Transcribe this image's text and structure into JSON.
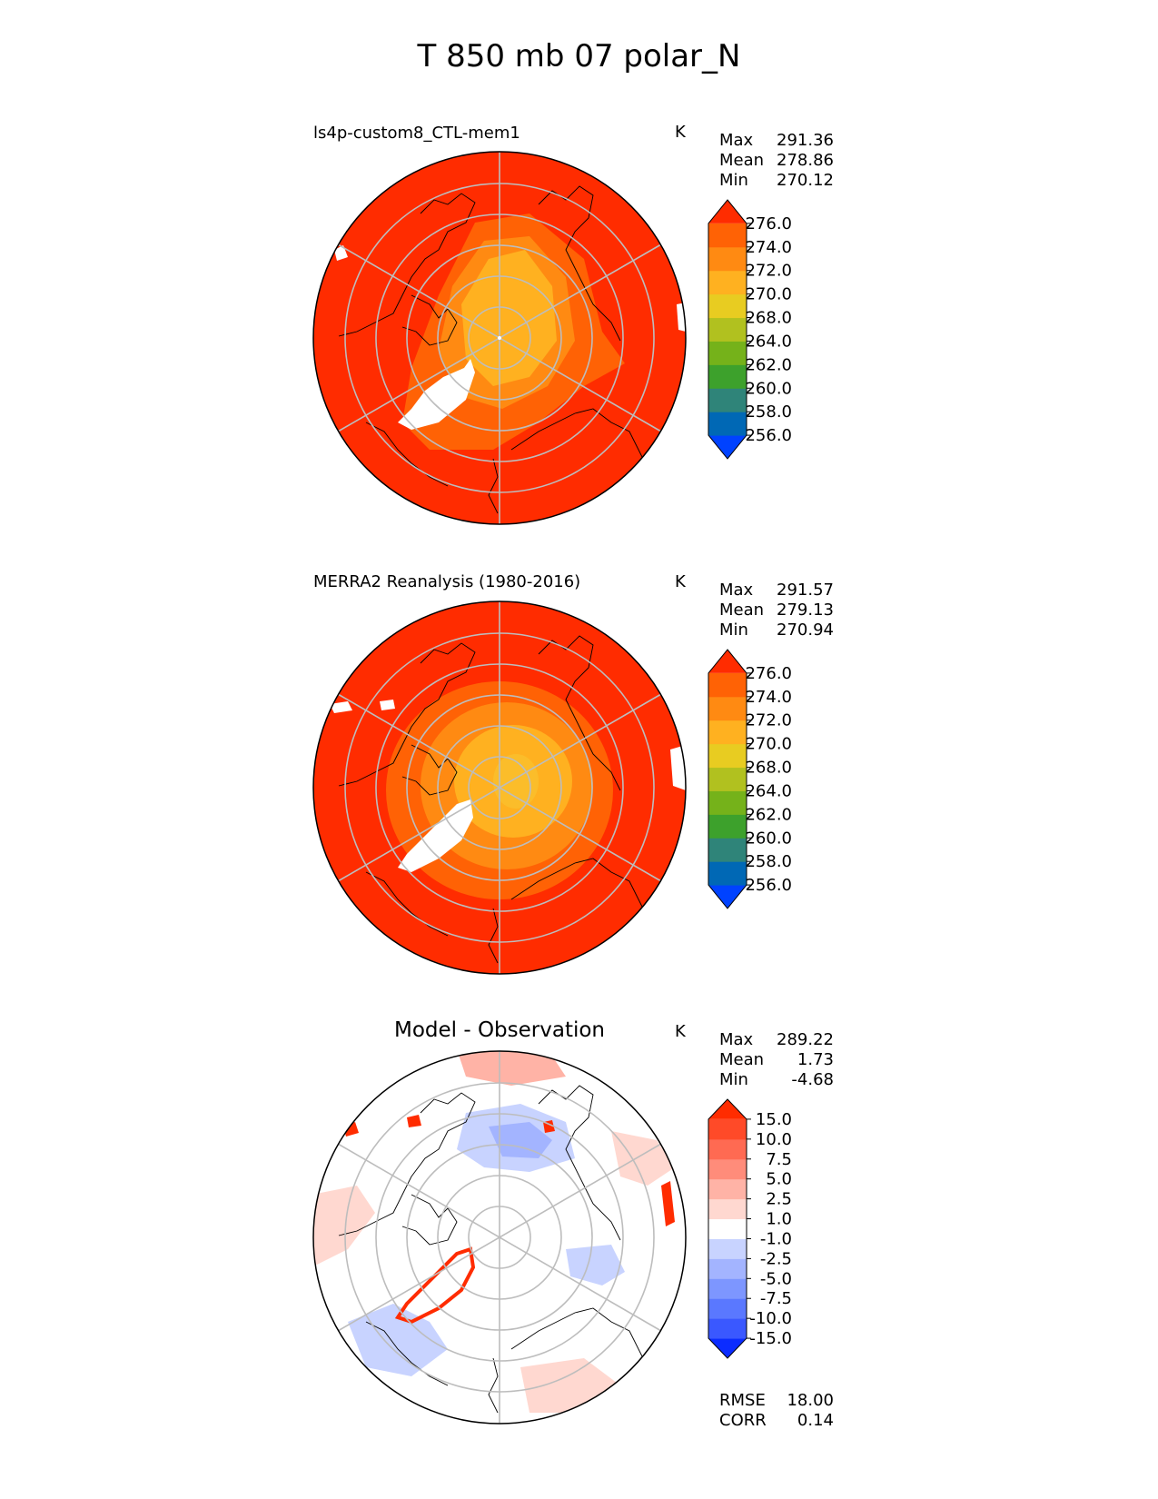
{
  "figure_title": "T 850 mb 07 polar_N",
  "units_label": "K",
  "panels": [
    {
      "title": "ls4p-custom8_CTL-mem1",
      "stats": [
        {
          "label": "Max",
          "value": "291.36"
        },
        {
          "label": "Mean",
          "value": "278.86"
        },
        {
          "label": "Min",
          "value": "270.12"
        }
      ],
      "colorbar": {
        "colors": [
          "#0042ff",
          "#0068b5",
          "#2f8479",
          "#3da12c",
          "#75b21a",
          "#b1c11f",
          "#e8cc21",
          "#ffb120",
          "#ff8a12",
          "#ff6205",
          "#ff2c00"
        ],
        "ticks": [
          "256.0",
          "258.0",
          "260.0",
          "262.0",
          "264.0",
          "268.0",
          "270.0",
          "272.0",
          "274.0",
          "276.0"
        ]
      },
      "center_color": "#ffb120",
      "ring_colors": [
        "#ffb120",
        "#ff8a12",
        "#ff6205",
        "#ff2c00"
      ]
    },
    {
      "title": "MERRA2 Reanalysis (1980-2016)",
      "stats": [
        {
          "label": "Max",
          "value": "291.57"
        },
        {
          "label": "Mean",
          "value": "279.13"
        },
        {
          "label": "Min",
          "value": "270.94"
        }
      ],
      "colorbar": {
        "colors": [
          "#0042ff",
          "#0068b5",
          "#2f8479",
          "#3da12c",
          "#75b21a",
          "#b1c11f",
          "#e8cc21",
          "#ffb120",
          "#ff8a12",
          "#ff6205",
          "#ff2c00"
        ],
        "ticks": [
          "256.0",
          "258.0",
          "260.0",
          "262.0",
          "264.0",
          "268.0",
          "270.0",
          "272.0",
          "274.0",
          "276.0"
        ]
      },
      "center_color": "#ffb120",
      "ring_colors": [
        "#ffb120",
        "#ff8a12",
        "#ff6205",
        "#ff2c00"
      ]
    },
    {
      "title": "Model - Observation",
      "stats": [
        {
          "label": "Max",
          "value": "289.22"
        },
        {
          "label": "Mean",
          "value": "1.73"
        },
        {
          "label": "Min",
          "value": "-4.68"
        }
      ],
      "colorbar": {
        "colors": [
          "#0b2cff",
          "#3a58ff",
          "#5a78ff",
          "#7d96ff",
          "#a3b4ff",
          "#c8d3ff",
          "#ffffff",
          "#ffd8d0",
          "#ffb3a6",
          "#ff8c7a",
          "#ff6a52",
          "#ff4a28",
          "#ff2c00"
        ],
        "ticks": [
          "-15.0",
          "-10.0",
          "-7.5",
          "-5.0",
          "-2.5",
          "-1.0",
          "1.0",
          "2.5",
          "5.0",
          "7.5",
          "10.0",
          "15.0"
        ]
      },
      "metrics": [
        {
          "label": "RMSE",
          "value": "18.00"
        },
        {
          "label": "CORR",
          "value": "0.14"
        }
      ]
    }
  ],
  "chart_data": {
    "type": "heatmap",
    "title": "T 850 mb 07 polar_N",
    "projection": "north polar stereographic",
    "units": "K",
    "fields": [
      {
        "name": "ls4p-custom8_CTL-mem1",
        "max": 291.36,
        "mean": 278.86,
        "min": 270.12,
        "levels": [
          256,
          258,
          260,
          262,
          264,
          268,
          270,
          272,
          274,
          276
        ]
      },
      {
        "name": "MERRA2 Reanalysis (1980-2016)",
        "max": 291.57,
        "mean": 279.13,
        "min": 270.94,
        "levels": [
          256,
          258,
          260,
          262,
          264,
          268,
          270,
          272,
          274,
          276
        ]
      },
      {
        "name": "Model - Observation",
        "max": 289.22,
        "mean": 1.73,
        "min": -4.68,
        "levels": [
          -15,
          -10,
          -7.5,
          -5,
          -2.5,
          -1,
          1,
          2.5,
          5,
          7.5,
          10,
          15
        ],
        "rmse": 18.0,
        "corr": 0.14
      }
    ]
  }
}
